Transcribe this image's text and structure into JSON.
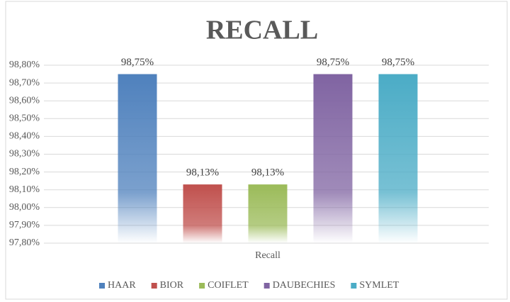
{
  "chart_data": {
    "type": "bar",
    "title": "RECALL",
    "categories": [
      "Recall"
    ],
    "series": [
      {
        "name": "HAAR",
        "color": "#4f81bd",
        "values": [
          98.75
        ],
        "value_labels": [
          "98,75%"
        ]
      },
      {
        "name": "BIOR",
        "color": "#c0504d",
        "values": [
          98.13
        ],
        "value_labels": [
          "98,13%"
        ]
      },
      {
        "name": "COIFLET",
        "color": "#9bbb59",
        "values": [
          98.13
        ],
        "value_labels": [
          "98,13%"
        ]
      },
      {
        "name": "DAUBECHIES",
        "color": "#8064a2",
        "values": [
          98.75
        ],
        "value_labels": [
          "98,75%"
        ]
      },
      {
        "name": "SYMLET",
        "color": "#4bacc6",
        "values": [
          98.75
        ],
        "value_labels": [
          "98,75%"
        ]
      }
    ],
    "ylim": [
      97.8,
      98.8
    ],
    "yticks": [
      {
        "value": 97.8,
        "label": "97,80%"
      },
      {
        "value": 97.9,
        "label": "97,90%"
      },
      {
        "value": 98.0,
        "label": "98,00%"
      },
      {
        "value": 98.1,
        "label": "98,10%"
      },
      {
        "value": 98.2,
        "label": "98,20%"
      },
      {
        "value": 98.3,
        "label": "98,30%"
      },
      {
        "value": 98.4,
        "label": "98,40%"
      },
      {
        "value": 98.5,
        "label": "98,50%"
      },
      {
        "value": 98.6,
        "label": "98,60%"
      },
      {
        "value": 98.7,
        "label": "98,70%"
      },
      {
        "value": 98.8,
        "label": "98,80%"
      }
    ],
    "grid": true,
    "legend": "bottom"
  }
}
